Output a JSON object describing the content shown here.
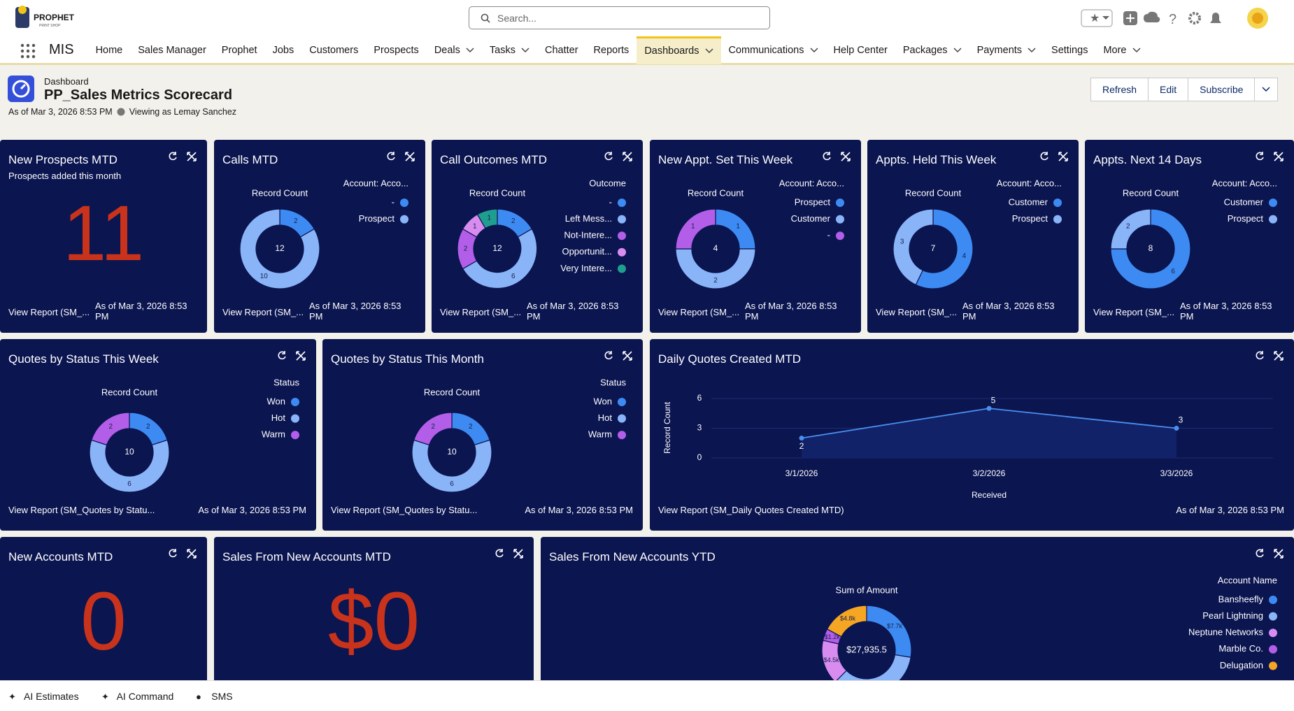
{
  "brand": {
    "name": "PROPHET",
    "tagline": "PRINT SHOP"
  },
  "search": "Search...",
  "app": "MIS",
  "nav": [
    {
      "label": "Home"
    },
    {
      "label": "Sales Manager"
    },
    {
      "label": "Prophet"
    },
    {
      "label": "Jobs"
    },
    {
      "label": "Customers"
    },
    {
      "label": "Prospects"
    },
    {
      "label": "Deals",
      "menu": true
    },
    {
      "label": "Tasks",
      "menu": true
    },
    {
      "label": "Chatter"
    },
    {
      "label": "Reports"
    },
    {
      "label": "Dashboards",
      "menu": true,
      "active": true
    },
    {
      "label": "Communications",
      "menu": true
    },
    {
      "label": "Help Center"
    },
    {
      "label": "Packages",
      "menu": true
    },
    {
      "label": "Payments",
      "menu": true
    },
    {
      "label": "Settings"
    },
    {
      "label": "More",
      "menu": true
    }
  ],
  "header": {
    "kind": "Dashboard",
    "title": "PP_Sales Metrics Scorecard",
    "as_of": "As of Mar 3, 2026 8:53 PM",
    "viewing": "Viewing as Lemay Sanchez",
    "buttons": [
      "Refresh",
      "Edit",
      "Subscribe"
    ]
  },
  "widgets": [
    {
      "type": "metric",
      "title": "New Prospects MTD",
      "subtitle": "Prospects added this month",
      "value": "11",
      "link": "View Report (SM_...",
      "as_of": "As of Mar 3, 2026 8:53 PM"
    },
    {
      "type": "donut",
      "title": "Calls MTD",
      "measure": "Record Count",
      "legend_title": "Account: Acco...",
      "total": "12",
      "segments": [
        {
          "name": "-",
          "color": "#3d8bf2",
          "value": 2
        },
        {
          "name": "Prospect",
          "color": "#8ab4f8",
          "value": 10
        }
      ],
      "link": "View Report (SM_...",
      "as_of": "As of Mar 3, 2026 8:53 PM"
    },
    {
      "type": "donut",
      "title": "Call Outcomes MTD",
      "measure": "Record Count",
      "legend_title": "Outcome",
      "total": "12",
      "segments": [
        {
          "name": "-",
          "color": "#3d8bf2",
          "value": 2
        },
        {
          "name": "Left Mess...",
          "color": "#8ab4f8",
          "value": 6
        },
        {
          "name": "Not-Intere...",
          "color": "#b35ee8",
          "value": 2
        },
        {
          "name": "Opportunit...",
          "color": "#d98cf0",
          "value": 1
        },
        {
          "name": "Very Intere...",
          "color": "#1f9e8f",
          "value": 1
        }
      ],
      "link": "View Report (SM_...",
      "as_of": "As of Mar 3, 2026 8:53 PM"
    },
    {
      "type": "donut",
      "title": "New Appt. Set This Week",
      "measure": "Record Count",
      "legend_title": "Account: Acco...",
      "total": "4",
      "segments": [
        {
          "name": "Prospect",
          "color": "#3d8bf2",
          "value": 1
        },
        {
          "name": "Customer",
          "color": "#8ab4f8",
          "value": 2
        },
        {
          "name": "-",
          "color": "#b35ee8",
          "value": 1
        }
      ],
      "link": "View Report (SM_...",
      "as_of": "As of Mar 3, 2026 8:53 PM"
    },
    {
      "type": "donut",
      "title": "Appts. Held This Week",
      "measure": "Record Count",
      "legend_title": "Account: Acco...",
      "total": "7",
      "segments": [
        {
          "name": "Customer",
          "color": "#3d8bf2",
          "value": 4
        },
        {
          "name": "Prospect",
          "color": "#8ab4f8",
          "value": 3
        }
      ],
      "link": "View Report (SM_...",
      "as_of": "As of Mar 3, 2026 8:53 PM"
    },
    {
      "type": "donut",
      "title": "Appts. Next 14 Days",
      "measure": "Record Count",
      "legend_title": "Account: Acco...",
      "total": "8",
      "segments": [
        {
          "name": "Customer",
          "color": "#3d8bf2",
          "value": 6
        },
        {
          "name": "Prospect",
          "color": "#8ab4f8",
          "value": 2
        }
      ],
      "link": "View Report (SM_...",
      "as_of": "As of Mar 3, 2026 8:53 PM"
    },
    {
      "type": "donut",
      "title": "Quotes by Status This Week",
      "measure": "Record Count",
      "legend_title": "Status",
      "total": "10",
      "segments": [
        {
          "name": "Won",
          "color": "#3d8bf2",
          "value": 2
        },
        {
          "name": "Hot",
          "color": "#8ab4f8",
          "value": 6
        },
        {
          "name": "Warm",
          "color": "#b35ee8",
          "value": 2
        }
      ],
      "link": "View Report (SM_Quotes by Statu...",
      "as_of": "As of Mar 3, 2026 8:53 PM"
    },
    {
      "type": "donut",
      "title": "Quotes by Status This Month",
      "measure": "Record Count",
      "legend_title": "Status",
      "total": "10",
      "segments": [
        {
          "name": "Won",
          "color": "#3d8bf2",
          "value": 2
        },
        {
          "name": "Hot",
          "color": "#8ab4f8",
          "value": 6
        },
        {
          "name": "Warm",
          "color": "#b35ee8",
          "value": 2
        }
      ],
      "link": "View Report (SM_Quotes by Statu...",
      "as_of": "As of Mar 3, 2026 8:53 PM"
    },
    {
      "type": "line",
      "title": "Daily Quotes Created MTD",
      "y_label": "Record Count",
      "x_label": "Received",
      "x": [
        "3/1/2026",
        "3/2/2026",
        "3/3/2026"
      ],
      "values": [
        2,
        5,
        3
      ],
      "ylim": [
        0,
        6
      ],
      "yticks": [
        0,
        3,
        6
      ],
      "color": "#4a8ff0",
      "link": "View Report (SM_Daily Quotes Created MTD)",
      "as_of": "As of Mar 3, 2026 8:53 PM"
    },
    {
      "type": "metric",
      "title": "New Accounts MTD",
      "value": "0"
    },
    {
      "type": "metric",
      "title": "Sales From New Accounts MTD",
      "value": "$0"
    },
    {
      "type": "donut",
      "title": "Sales From New Accounts YTD",
      "measure": "Sum of Amount",
      "legend_title": "Account Name",
      "total": "$27,935.5",
      "segments": [
        {
          "name": "Bansheefly",
          "color": "#3d8bf2",
          "value": 7700,
          "value_label": "$7.7k"
        },
        {
          "name": "Pearl Lightning",
          "color": "#8ab4f8",
          "value": 9735.5
        },
        {
          "name": "Neptune Networks",
          "color": "#d98cf0",
          "value": 4500,
          "value_label": "$4.5k"
        },
        {
          "name": "Marble Co.",
          "color": "#b35ee8",
          "value": 1200,
          "value_label": "$1.2k"
        },
        {
          "name": "Delugation",
          "color": "#f5a623",
          "value": 4800,
          "value_label": "$4.8k"
        }
      ]
    }
  ],
  "footer": [
    "AI Estimates",
    "AI Command",
    "SMS"
  ]
}
